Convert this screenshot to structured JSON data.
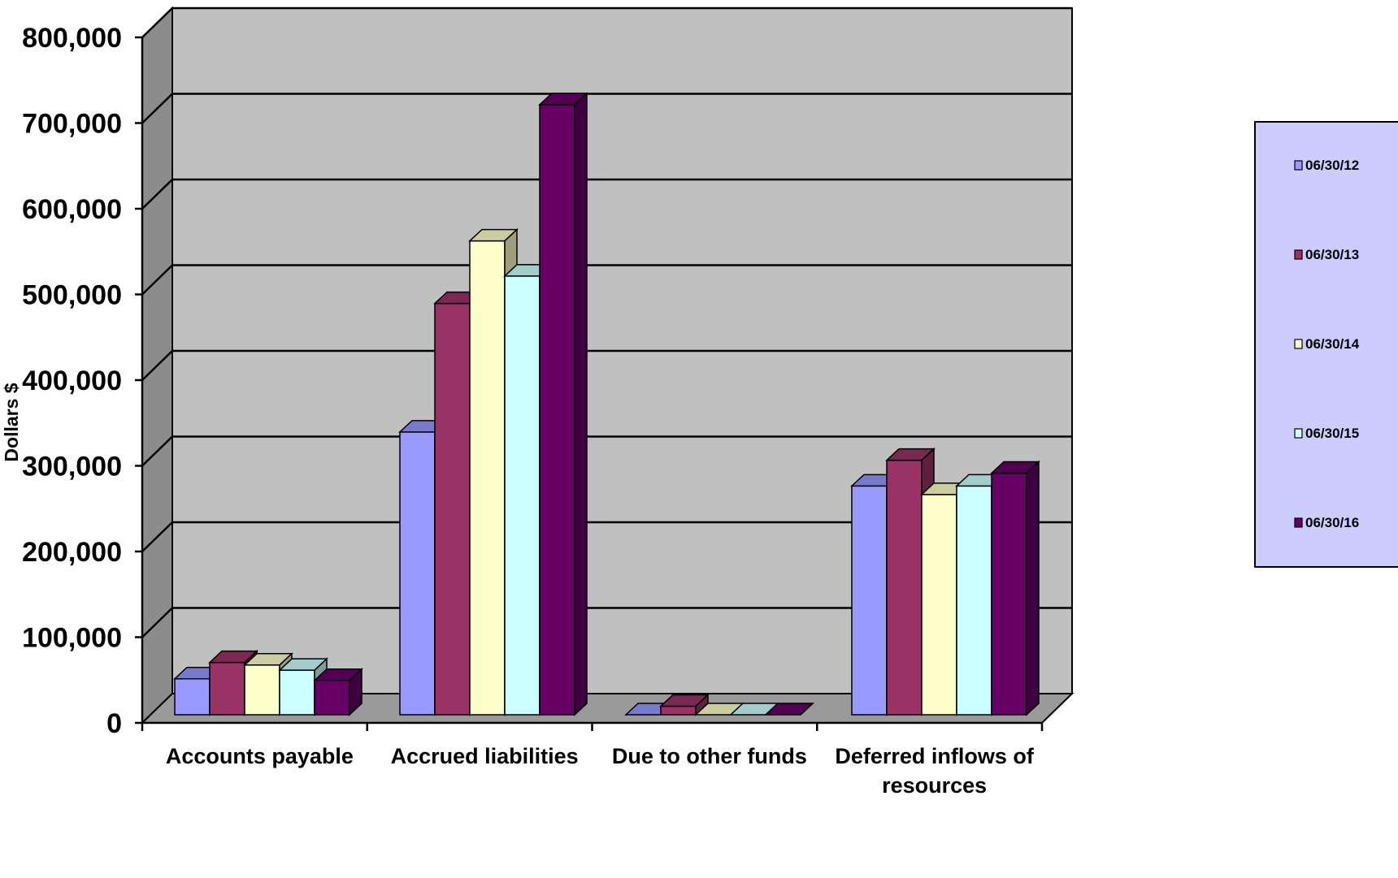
{
  "chart_data": {
    "type": "bar",
    "title": "",
    "xlabel": "",
    "ylabel": "Dollars $",
    "ylim": [
      0,
      800000
    ],
    "y_ticks": [
      0,
      100000,
      200000,
      300000,
      400000,
      500000,
      600000,
      700000,
      800000
    ],
    "y_tick_labels": [
      "0",
      "100,000",
      "200,000",
      "300,000",
      "400,000",
      "500,000",
      "600,000",
      "700,000",
      "800,000"
    ],
    "categories": [
      "Accounts payable",
      "Accrued liabilities",
      "Due to other funds",
      "Deferred inflows of resources"
    ],
    "series": [
      {
        "name": "06/30/12",
        "color": "#9999ff",
        "values": [
          42000,
          330000,
          0,
          267000
        ]
      },
      {
        "name": "06/30/13",
        "color": "#993366",
        "values": [
          61000,
          480000,
          10000,
          297000
        ]
      },
      {
        "name": "06/30/14",
        "color": "#ffffcc",
        "values": [
          58000,
          553000,
          0,
          257000
        ]
      },
      {
        "name": "06/30/15",
        "color": "#ccffff",
        "values": [
          52000,
          512000,
          0,
          267000
        ]
      },
      {
        "name": "06/30/16",
        "color": "#660066",
        "values": [
          40000,
          712000,
          0,
          282000
        ]
      }
    ],
    "grid": true,
    "legend_position": "right",
    "three_d": true,
    "wall_color": "#c0c0c0",
    "legend_background": "#ccccff"
  }
}
